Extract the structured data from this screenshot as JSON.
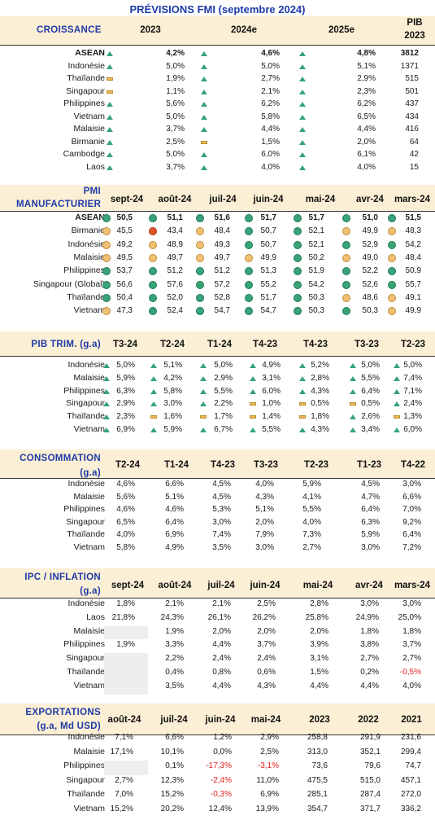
{
  "title": "PRÉVISIONS FMI (septembre 2024)",
  "croissance": {
    "label": "CROISSANCE",
    "columns": [
      "2023",
      "2024e",
      "2025e"
    ],
    "pib_header": [
      "PIB",
      "2023"
    ],
    "rows": [
      {
        "country": "ASEAN",
        "bold": true,
        "v": [
          "4,2%",
          "4,6%",
          "4,8%"
        ],
        "i": [
          "up",
          "up",
          "up"
        ],
        "pib": "3812"
      },
      {
        "country": "Indonésie",
        "v": [
          "5,0%",
          "5,0%",
          "5,1%"
        ],
        "i": [
          "up",
          "up",
          "up"
        ],
        "pib": "1371"
      },
      {
        "country": "Thaïlande",
        "v": [
          "1,9%",
          "2,7%",
          "2,9%"
        ],
        "i": [
          "flat",
          "up",
          "up"
        ],
        "pib": "515"
      },
      {
        "country": "Singapour",
        "v": [
          "1,1%",
          "2,1%",
          "2,3%"
        ],
        "i": [
          "flat",
          "up",
          "up"
        ],
        "pib": "501"
      },
      {
        "country": "Philippines",
        "v": [
          "5,6%",
          "6,2%",
          "6,2%"
        ],
        "i": [
          "up",
          "up",
          "up"
        ],
        "pib": "437"
      },
      {
        "country": "Vietnam",
        "v": [
          "5,0%",
          "5,8%",
          "6,5%"
        ],
        "i": [
          "up",
          "up",
          "up"
        ],
        "pib": "434"
      },
      {
        "country": "Malaisie",
        "v": [
          "3,7%",
          "4,4%",
          "4,4%"
        ],
        "i": [
          "up",
          "up",
          "up"
        ],
        "pib": "416"
      },
      {
        "country": "Birmanie",
        "v": [
          "2,5%",
          "1,5%",
          "2,0%"
        ],
        "i": [
          "up",
          "flat",
          "up"
        ],
        "pib": "64"
      },
      {
        "country": "Cambodge",
        "v": [
          "5,0%",
          "6,0%",
          "6,1%"
        ],
        "i": [
          "up",
          "up",
          "up"
        ],
        "pib": "42"
      },
      {
        "country": "Laos",
        "v": [
          "3,7%",
          "4,0%",
          "4,0%"
        ],
        "i": [
          "up",
          "up",
          "up"
        ],
        "pib": "15"
      }
    ]
  },
  "pmi": {
    "label": [
      "PMI",
      "MANUFACTURIER"
    ],
    "columns": [
      "sept-24",
      "août-24",
      "juil-24",
      "juin-24",
      "mai-24",
      "avr-24",
      "mars-24"
    ],
    "rows": [
      {
        "country": "ASEAN",
        "bold": true,
        "v": [
          "50,5",
          "51,1",
          "51,6",
          "51,7",
          "51,7",
          "51,0",
          "51,5"
        ],
        "d": [
          "g",
          "g",
          "g",
          "g",
          "g",
          "g",
          "g"
        ]
      },
      {
        "country": "Birmanie",
        "v": [
          "45,5",
          "43,4",
          "48,4",
          "50,7",
          "52,1",
          "49,9",
          "48,3"
        ],
        "d": [
          "y",
          "r",
          "y",
          "g",
          "g",
          "y",
          "y"
        ]
      },
      {
        "country": "Indonésie",
        "v": [
          "49,2",
          "48,9",
          "49,3",
          "50,7",
          "52,1",
          "52,9",
          "54,2"
        ],
        "d": [
          "y",
          "y",
          "y",
          "g",
          "g",
          "g",
          "g"
        ]
      },
      {
        "country": "Malaisie",
        "v": [
          "49,5",
          "49,7",
          "49,7",
          "49,9",
          "50,2",
          "49,0",
          "48,4"
        ],
        "d": [
          "y",
          "y",
          "y",
          "y",
          "g",
          "y",
          "y"
        ]
      },
      {
        "country": "Philippines",
        "v": [
          "53,7",
          "51,2",
          "51,2",
          "51,3",
          "51,9",
          "52,2",
          "50,9"
        ],
        "d": [
          "g",
          "g",
          "g",
          "g",
          "g",
          "g",
          "g"
        ]
      },
      {
        "country": "Singapour (Global)",
        "v": [
          "56,6",
          "57,6",
          "57,2",
          "55,2",
          "54,2",
          "52,6",
          "55,7"
        ],
        "d": [
          "g",
          "g",
          "g",
          "g",
          "g",
          "g",
          "g"
        ]
      },
      {
        "country": "Thaïlande",
        "v": [
          "50,4",
          "52,0",
          "52,8",
          "51,7",
          "50,3",
          "48,6",
          "49,1"
        ],
        "d": [
          "g",
          "g",
          "g",
          "g",
          "g",
          "y",
          "y"
        ]
      },
      {
        "country": "Vietnam",
        "v": [
          "47,3",
          "52,4",
          "54,7",
          "54,7",
          "50,3",
          "50,3",
          "49,9"
        ],
        "d": [
          "y",
          "g",
          "g",
          "g",
          "g",
          "g",
          "y"
        ]
      }
    ]
  },
  "pib_trim": {
    "label": "PIB TRIM. (g.a)",
    "columns": [
      "T3-24",
      "T2-24",
      "T1-24",
      "T4-23",
      "T4-23",
      "T3-23",
      "T2-23"
    ],
    "rows": [
      {
        "country": "Indonésie",
        "v": [
          "5,0%",
          "5,1%",
          "5,0%",
          "4,9%",
          "5,2%",
          "5,0%",
          "5,0%"
        ],
        "i": [
          "up",
          "up",
          "up",
          "up",
          "up",
          "up",
          "up"
        ]
      },
      {
        "country": "Malaisie",
        "v": [
          "5,9%",
          "4,2%",
          "2,9%",
          "3,1%",
          "2,8%",
          "5,5%",
          "7,4%"
        ],
        "i": [
          "up",
          "up",
          "up",
          "up",
          "up",
          "up",
          "up"
        ]
      },
      {
        "country": "Philippines",
        "v": [
          "6,3%",
          "5,8%",
          "5,5%",
          "6,0%",
          "4,3%",
          "6,4%",
          "7,1%"
        ],
        "i": [
          "up",
          "up",
          "up",
          "up",
          "up",
          "up",
          "up"
        ]
      },
      {
        "country": "Singapour",
        "v": [
          "2,9%",
          "3,0%",
          "2,2%",
          "1,0%",
          "0,5%",
          "0,5%",
          "2,4%"
        ],
        "i": [
          "up",
          "up",
          "up",
          "flat",
          "flat",
          "flat",
          "up"
        ]
      },
      {
        "country": "Thaïlande",
        "v": [
          "2,3%",
          "1,6%",
          "1,7%",
          "1,4%",
          "1,8%",
          "2,6%",
          "1,3%"
        ],
        "i": [
          "up",
          "flat",
          "flat",
          "flat",
          "flat",
          "up",
          "flat"
        ]
      },
      {
        "country": "Vietnam",
        "v": [
          "6,9%",
          "5,9%",
          "6,7%",
          "5,5%",
          "4,3%",
          "3,4%",
          "6,0%"
        ],
        "i": [
          "up",
          "up",
          "up",
          "up",
          "up",
          "up",
          "up"
        ]
      }
    ]
  },
  "consommation": {
    "label": [
      "CONSOMMATION",
      "(g.a)"
    ],
    "columns": [
      "T2-24",
      "T1-24",
      "T4-23",
      "T3-23",
      "T2-23",
      "T1-23",
      "T4-22"
    ],
    "rows": [
      {
        "country": "Indonésie",
        "v": [
          "4,6%",
          "6,6%",
          "4,5%",
          "4,0%",
          "5,9%",
          "4,5%",
          "3,0%"
        ]
      },
      {
        "country": "Malaisie",
        "v": [
          "5,6%",
          "5,1%",
          "4,5%",
          "4,3%",
          "4,1%",
          "4,7%",
          "6,6%"
        ]
      },
      {
        "country": "Philippines",
        "v": [
          "4,6%",
          "4,6%",
          "5,3%",
          "5,1%",
          "5,5%",
          "6,4%",
          "7,0%"
        ]
      },
      {
        "country": "Singapour",
        "v": [
          "6,5%",
          "6,4%",
          "3,0%",
          "2,0%",
          "4,0%",
          "6,3%",
          "9,2%"
        ]
      },
      {
        "country": "Thaïlande",
        "v": [
          "4,0%",
          "6,9%",
          "7,4%",
          "7,9%",
          "7,3%",
          "5,9%",
          "6,4%"
        ]
      },
      {
        "country": "Vietnam",
        "v": [
          "5,8%",
          "4,9%",
          "3,5%",
          "3,0%",
          "2,7%",
          "3,0%",
          "7,2%"
        ]
      }
    ]
  },
  "ipc": {
    "label": [
      "IPC / INFLATION",
      "(g.a)"
    ],
    "columns": [
      "sept-24",
      "août-24",
      "juil-24",
      "juin-24",
      "mai-24",
      "avr-24",
      "mars-24"
    ],
    "rows": [
      {
        "country": "Indonésie",
        "v": [
          "1,8%",
          "2,1%",
          "2,1%",
          "2,5%",
          "2,8%",
          "3,0%",
          "3,0%"
        ]
      },
      {
        "country": "Laos",
        "v": [
          "21,8%",
          "24,3%",
          "26,1%",
          "26,2%",
          "25,8%",
          "24,9%",
          "25,0%"
        ]
      },
      {
        "country": "Malaisie",
        "v": [
          "",
          "1,9%",
          "2,0%",
          "2,0%",
          "2,0%",
          "1,8%",
          "1,8%"
        ]
      },
      {
        "country": "Philippines",
        "v": [
          "1,9%",
          "3,3%",
          "4,4%",
          "3,7%",
          "3,9%",
          "3,8%",
          "3,7%"
        ]
      },
      {
        "country": "Singapour",
        "v": [
          "",
          "2,2%",
          "2,4%",
          "2,4%",
          "3,1%",
          "2,7%",
          "2,7%"
        ]
      },
      {
        "country": "Thaïlande",
        "v": [
          "",
          "0,4%",
          "0,8%",
          "0,6%",
          "1,5%",
          "0,2%",
          "-0,5%"
        ]
      },
      {
        "country": "Vietnam",
        "v": [
          "",
          "3,5%",
          "4,4%",
          "4,3%",
          "4,4%",
          "4,4%",
          "4,0%"
        ]
      }
    ]
  },
  "exportations": {
    "label": [
      "EXPORTATIONS",
      "(g.a, Md USD)"
    ],
    "columns": [
      "août-24",
      "juil-24",
      "juin-24",
      "mai-24",
      "2023",
      "2022",
      "2021"
    ],
    "rows": [
      {
        "country": "Indonésie",
        "v": [
          "7,1%",
          "6,6%",
          "1,2%",
          "2,9%",
          "258,8",
          "291,9",
          "231,6"
        ]
      },
      {
        "country": "Malaisie",
        "v": [
          "17,1%",
          "10,1%",
          "0,0%",
          "2,5%",
          "313,0",
          "352,1",
          "299,4"
        ]
      },
      {
        "country": "Philippines",
        "v": [
          "",
          "0,1%",
          "-17,3%",
          "-3,1%",
          "73,6",
          "79,6",
          "74,7"
        ]
      },
      {
        "country": "Singapour",
        "v": [
          "2,7%",
          "12,3%",
          "-2,4%",
          "11,0%",
          "475,5",
          "515,0",
          "457,1"
        ]
      },
      {
        "country": "Thaïlande",
        "v": [
          "7,0%",
          "15,2%",
          "-0,3%",
          "6,9%",
          "285,1",
          "287,4",
          "272,0"
        ]
      },
      {
        "country": "Vietnam",
        "v": [
          "15,2%",
          "20,2%",
          "12,4%",
          "13,9%",
          "354,7",
          "371,7",
          "336,2"
        ]
      }
    ]
  }
}
